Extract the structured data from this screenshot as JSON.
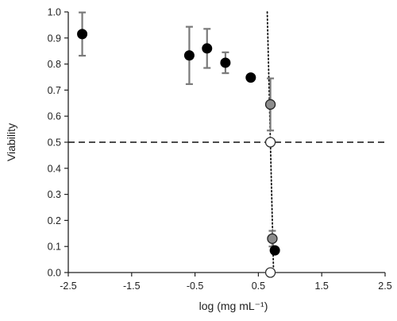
{
  "chart_data": {
    "type": "scatter",
    "xlabel": "log (mg mL⁻¹)",
    "ylabel": "Viability",
    "xlim": [
      -2.5,
      2.5
    ],
    "ylim": [
      0.0,
      1.0
    ],
    "xticks": [
      -2.5,
      -1.5,
      -0.5,
      0.5,
      1.5,
      2.5
    ],
    "xtick_labels": [
      "-2.5",
      "-1.5",
      "-0.5",
      "0.5",
      "1.5",
      "2.5"
    ],
    "yticks": [
      0.0,
      0.1,
      0.2,
      0.3,
      0.4,
      0.5,
      0.6,
      0.7,
      0.8,
      0.9,
      1.0
    ],
    "ytick_labels": [
      "0.0",
      "0.1",
      "0.2",
      "0.3",
      "0.4",
      "0.5",
      "0.6",
      "0.7",
      "0.8",
      "0.9",
      "1.0"
    ],
    "grid": false,
    "legend": "none",
    "series": [
      {
        "marker": "filled-black",
        "color": "#000000",
        "points": [
          {
            "x": -2.28,
            "y": 0.915,
            "err": 0.083
          },
          {
            "x": -0.59,
            "y": 0.833,
            "err": 0.11
          },
          {
            "x": -0.31,
            "y": 0.86,
            "err": 0.075
          },
          {
            "x": -0.02,
            "y": 0.805,
            "err": 0.04
          },
          {
            "x": 0.38,
            "y": 0.748,
            "err": 0.0
          },
          {
            "x": 0.76,
            "y": 0.085,
            "err": 0.0
          }
        ]
      },
      {
        "marker": "filled-grey",
        "color": "#8c8c8c",
        "points": [
          {
            "x": 0.69,
            "y": 0.645,
            "err": 0.1
          },
          {
            "x": 0.72,
            "y": 0.13,
            "err": 0.03
          }
        ]
      },
      {
        "marker": "open-circle",
        "color": "#ffffff",
        "points": [
          {
            "x": 0.69,
            "y": 0.5,
            "err": 0.0
          },
          {
            "x": 0.69,
            "y": 0.0,
            "err": 0.0
          }
        ]
      }
    ],
    "reference_lines": [
      {
        "orientation": "horizontal",
        "style": "dashed",
        "y": 0.5
      },
      {
        "orientation": "line",
        "style": "dotted",
        "x1": 0.64,
        "y1": 1.0,
        "x2": 0.74,
        "y2": 0.0
      }
    ]
  }
}
